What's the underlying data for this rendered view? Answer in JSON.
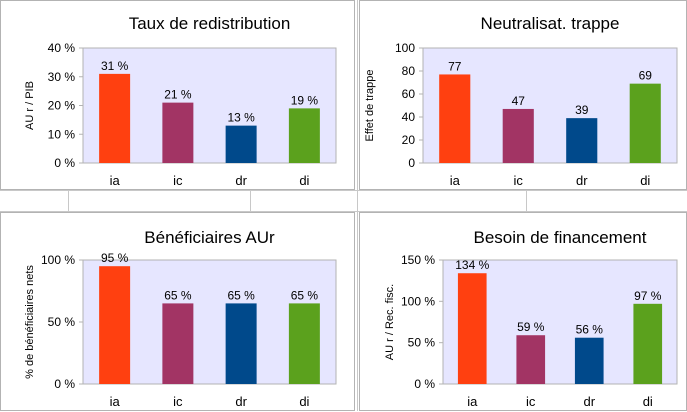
{
  "colors": {
    "ia": "#ff4010",
    "ic": "#a23464",
    "dr": "#00498b",
    "di": "#5ba11d",
    "plot_bg": "#e6e6ff",
    "plot_border": "#b3b3b3"
  },
  "chart_data": [
    {
      "type": "bar",
      "title": "Taux de redistribution",
      "ylabel": "AU r / PIB",
      "xlabel": "",
      "categories": [
        "ia",
        "ic",
        "dr",
        "di"
      ],
      "values": [
        31,
        21,
        13,
        19
      ],
      "data_labels": [
        "31 %",
        "21 %",
        "13 %",
        "19 %"
      ],
      "ylim": [
        0,
        40
      ],
      "yticks": [
        0,
        10,
        20,
        30,
        40
      ],
      "ytick_labels": [
        "0 %",
        "10 %",
        "20 %",
        "30 %",
        "40 %"
      ],
      "grid": false,
      "legend": "none"
    },
    {
      "type": "bar",
      "title": "Neutralisat. trappe",
      "ylabel": "Effet de trappe",
      "xlabel": "",
      "categories": [
        "ia",
        "ic",
        "dr",
        "di"
      ],
      "values": [
        77,
        47,
        39,
        69
      ],
      "data_labels": [
        "77",
        "47",
        "39",
        "69"
      ],
      "ylim": [
        0,
        100
      ],
      "yticks": [
        0,
        20,
        40,
        60,
        80,
        100
      ],
      "ytick_labels": [
        "0",
        "20",
        "40",
        "60",
        "80",
        "100"
      ],
      "grid": false,
      "legend": "none"
    },
    {
      "type": "bar",
      "title": "Bénéficiaires AUr",
      "ylabel": "% de bénéficiaires nets",
      "xlabel": "",
      "categories": [
        "ia",
        "ic",
        "dr",
        "di"
      ],
      "values": [
        95,
        65,
        65,
        65
      ],
      "data_labels": [
        "95 %",
        "65 %",
        "65 %",
        "65 %"
      ],
      "ylim": [
        0,
        100
      ],
      "yticks": [
        0,
        50,
        100
      ],
      "ytick_labels": [
        "0 %",
        "50 %",
        "100 %"
      ],
      "grid": false,
      "legend": "none"
    },
    {
      "type": "bar",
      "title": "Besoin de financement",
      "ylabel": "AU r / Rec. fisc.",
      "xlabel": "",
      "categories": [
        "ia",
        "ic",
        "dr",
        "di"
      ],
      "values": [
        134,
        59,
        56,
        97
      ],
      "data_labels": [
        "134 %",
        "59 %",
        "56 %",
        "97 %"
      ],
      "ylim": [
        0,
        150
      ],
      "yticks": [
        0,
        50,
        100,
        150
      ],
      "ytick_labels": [
        "0 %",
        "50 %",
        "100 %",
        "150 %"
      ],
      "grid": false,
      "legend": "none"
    }
  ]
}
